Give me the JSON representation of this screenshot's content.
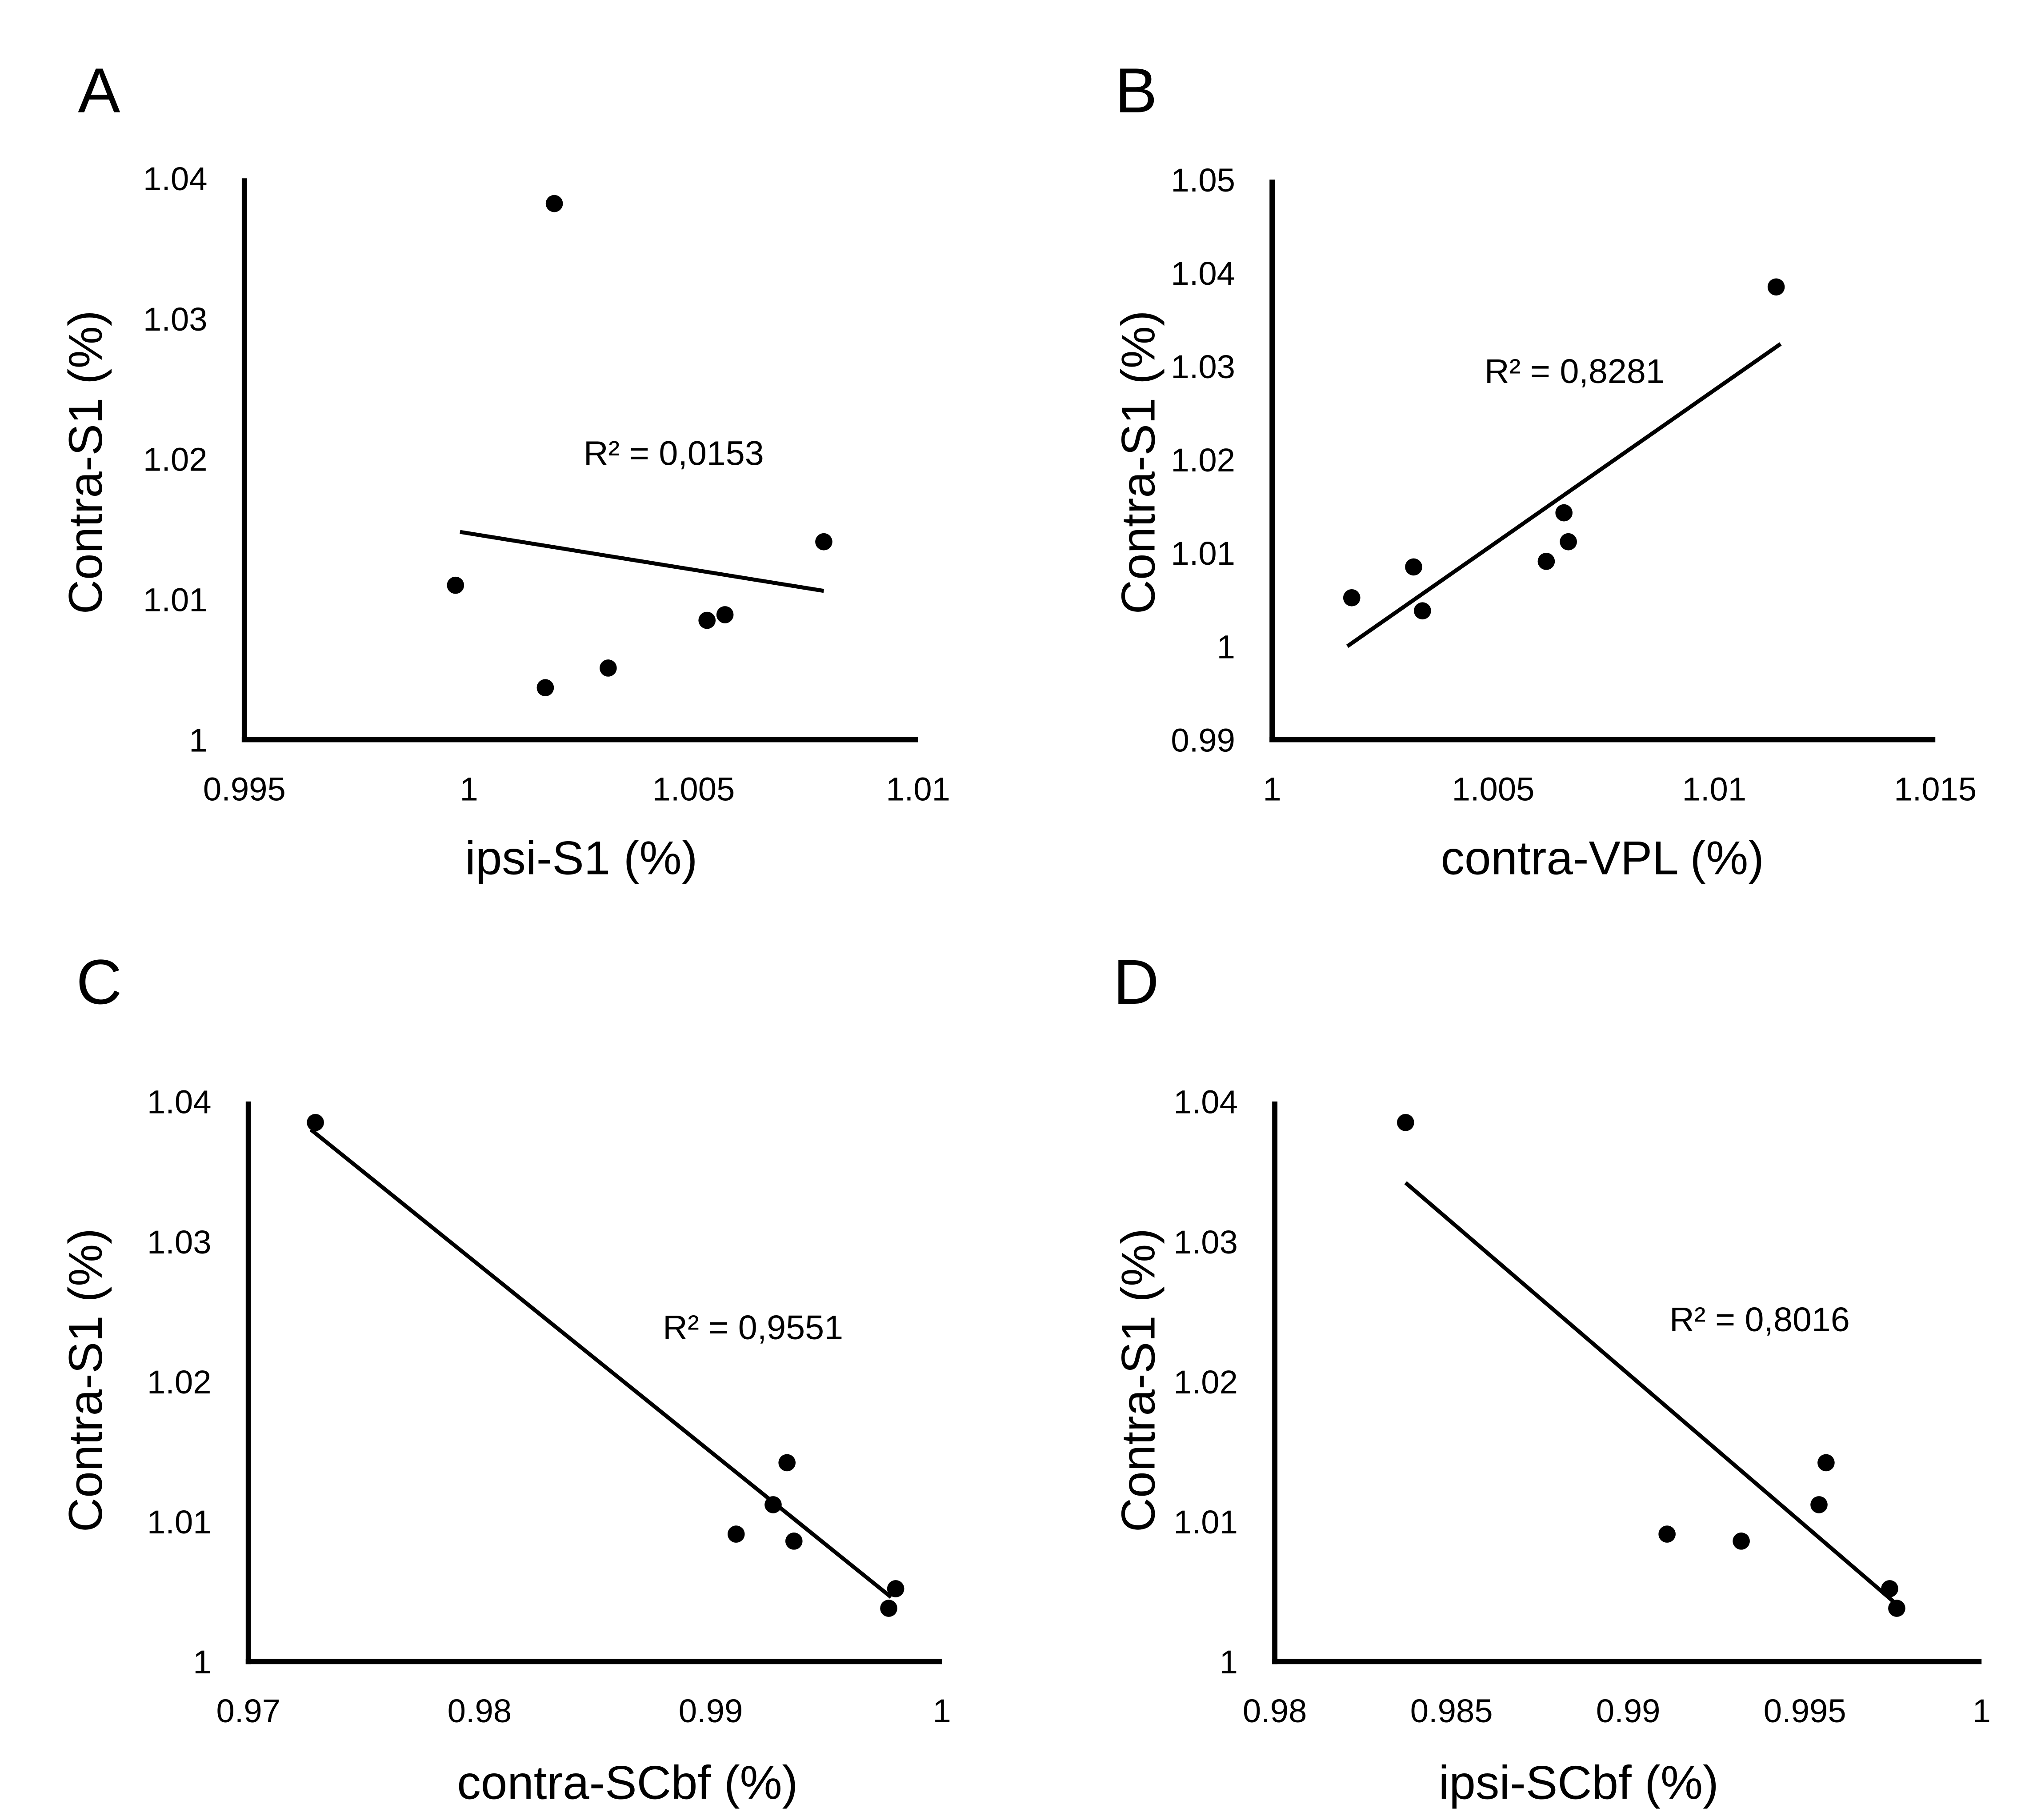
{
  "chart_data": [
    {
      "type": "scatter",
      "panel": "A",
      "xlabel": "ipsi-S1 (%)",
      "ylabel": "Contra-S1 (%)",
      "xlim": [
        0.995,
        1.01
      ],
      "ylim": [
        1,
        1.04
      ],
      "xticks": [
        "0.995",
        "1",
        "1.005",
        "1.01"
      ],
      "xtick_values": [
        0.995,
        1,
        1.005,
        1.01
      ],
      "yticks": [
        "1",
        "1.01",
        "1.02",
        "1.03",
        "1.04"
      ],
      "ytick_values": [
        1,
        1.01,
        1.02,
        1.03,
        1.04
      ],
      "points": [
        [
          0.9997,
          1.011
        ],
        [
          1.0019,
          1.0382
        ],
        [
          1.0017,
          1.0037
        ],
        [
          1.0031,
          1.0051
        ],
        [
          1.0053,
          1.0085
        ],
        [
          1.0057,
          1.0089
        ],
        [
          1.0079,
          1.0141
        ]
      ],
      "trendline": [
        [
          0.9998,
          1.0148
        ],
        [
          1.0079,
          1.0106
        ]
      ],
      "annotation": "R² = 0,0153"
    },
    {
      "type": "scatter",
      "panel": "B",
      "xlabel": "contra-VPL (%)",
      "ylabel": "Contra-S1 (%)",
      "xlim": [
        1,
        1.015
      ],
      "ylim": [
        0.99,
        1.05
      ],
      "xticks": [
        "1",
        "1.005",
        "1.01",
        "1.015"
      ],
      "xtick_values": [
        1,
        1.005,
        1.01,
        1.015
      ],
      "yticks": [
        "0.99",
        "1",
        "1.01",
        "1.02",
        "1.03",
        "1.04",
        "1.05"
      ],
      "ytick_values": [
        0.99,
        1,
        1.01,
        1.02,
        1.03,
        1.04,
        1.05
      ],
      "points": [
        [
          1.0018,
          1.0052
        ],
        [
          1.0032,
          1.0085
        ],
        [
          1.0034,
          1.0038
        ],
        [
          1.0062,
          1.0091
        ],
        [
          1.0066,
          1.0143
        ],
        [
          1.0067,
          1.0112
        ],
        [
          1.0114,
          1.0385
        ]
      ],
      "trendline": [
        [
          1.0017,
          1.0
        ],
        [
          1.0115,
          1.0324
        ]
      ],
      "annotation": "R² = 0,8281"
    },
    {
      "type": "scatter",
      "panel": "C",
      "xlabel": "contra-SCbf (%)",
      "ylabel": "Contra-S1 (%)",
      "xlim": [
        0.97,
        1
      ],
      "ylim": [
        1,
        1.04
      ],
      "xticks": [
        "0.97",
        "0.98",
        "0.99",
        "1"
      ],
      "xtick_values": [
        0.97,
        0.98,
        0.99,
        1
      ],
      "yticks": [
        "1",
        "1.01",
        "1.02",
        "1.03",
        "1.04"
      ],
      "ytick_values": [
        1,
        1.01,
        1.02,
        1.03,
        1.04
      ],
      "points": [
        [
          0.9729,
          1.0385
        ],
        [
          0.9933,
          1.0142
        ],
        [
          0.9927,
          1.0112
        ],
        [
          0.9911,
          1.0091
        ],
        [
          0.9936,
          1.0086
        ],
        [
          0.998,
          1.0052
        ],
        [
          0.9977,
          1.0038
        ]
      ],
      "trendline": [
        [
          0.9727,
          1.038
        ],
        [
          0.9978,
          1.0046
        ]
      ],
      "annotation": "R² = 0,9551"
    },
    {
      "type": "scatter",
      "panel": "D",
      "xlabel": "ipsi-SCbf (%)",
      "ylabel": "Contra-S1 (%)",
      "xlim": [
        0.98,
        1
      ],
      "ylim": [
        1,
        1.04
      ],
      "xticks": [
        "0.98",
        "0.985",
        "0.99",
        "0.995",
        "1"
      ],
      "xtick_values": [
        0.98,
        0.985,
        0.99,
        0.995,
        1
      ],
      "yticks": [
        "1",
        "1.01",
        "1.02",
        "1.03",
        "1.04"
      ],
      "ytick_values": [
        1,
        1.01,
        1.02,
        1.03,
        1.04
      ],
      "points": [
        [
          0.9837,
          1.0385
        ],
        [
          0.9911,
          1.0091
        ],
        [
          0.9932,
          1.0086
        ],
        [
          0.9956,
          1.0142
        ],
        [
          0.9954,
          1.0112
        ],
        [
          0.9974,
          1.0052
        ],
        [
          0.9976,
          1.0038
        ]
      ],
      "trendline": [
        [
          0.9837,
          1.0342
        ],
        [
          0.9975,
          1.0043
        ]
      ],
      "annotation": "R² = 0,8016"
    }
  ]
}
